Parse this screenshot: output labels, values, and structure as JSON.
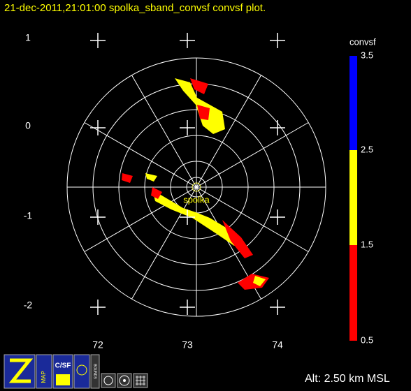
{
  "header": {
    "title": "21-dec-2011,21:01:00  spolka_sband_convsf convsf  plot."
  },
  "plot": {
    "y_labels": [
      "1",
      "0",
      "-1",
      "-2"
    ],
    "x_labels": [
      "72",
      "73",
      "74"
    ],
    "station": "spolka"
  },
  "colorbar": {
    "title": "convsf",
    "labels": [
      "3.5",
      "2.5",
      "1.5",
      "0.5"
    ]
  },
  "toolbar": {
    "buttons": [
      "MAP",
      "C/SF",
      "BOUNDS"
    ]
  },
  "footer": {
    "altitude": "Alt: 2.50 km MSL"
  }
}
